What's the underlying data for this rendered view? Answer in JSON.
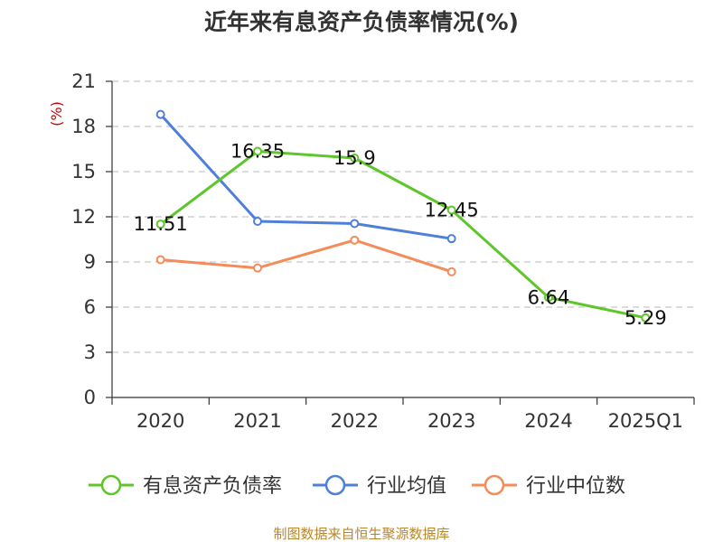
{
  "chart_data": {
    "type": "line",
    "title": "近年来有息资产负债率情况(%)",
    "ylabel": "(%)",
    "xlabel": "",
    "categories": [
      "2020",
      "2021",
      "2022",
      "2023",
      "2024",
      "2025Q1"
    ],
    "ylim": [
      0,
      21
    ],
    "yticks": [
      0,
      3,
      6,
      9,
      12,
      15,
      18,
      21
    ],
    "grid": true,
    "legend_position": "bottom",
    "series": [
      {
        "name": "有息资产负债率",
        "color": "#5ec62a",
        "values": [
          11.51,
          16.35,
          15.9,
          12.45,
          6.64,
          5.29
        ],
        "labels": [
          "11.51",
          "16.35",
          "15.9",
          "12.45",
          "6.64",
          "5.29"
        ]
      },
      {
        "name": "行业均值",
        "color": "#4e7fd9",
        "values": [
          18.8,
          11.7,
          11.55,
          10.55,
          null,
          null
        ]
      },
      {
        "name": "行业中位数",
        "color": "#f48c5a",
        "values": [
          9.15,
          8.6,
          10.45,
          8.35,
          null,
          null
        ]
      }
    ]
  },
  "source": "制图数据来自恒生聚源数据库"
}
